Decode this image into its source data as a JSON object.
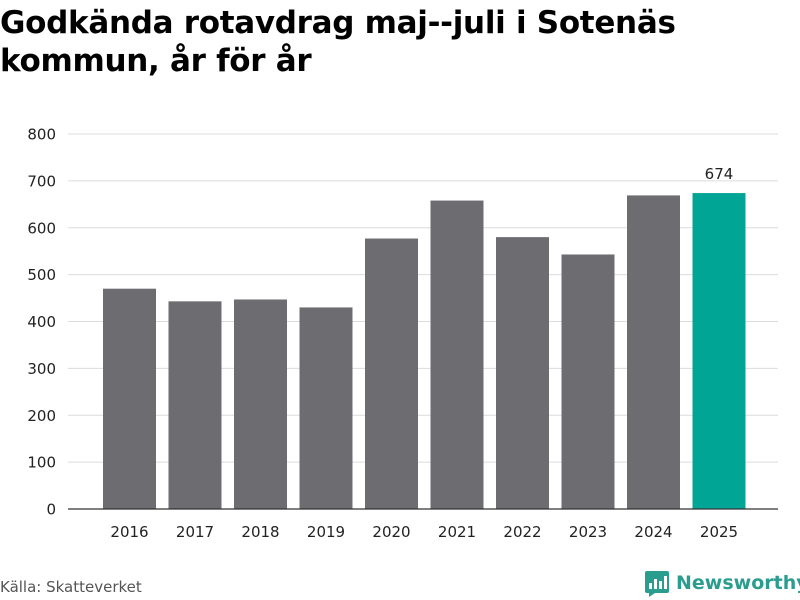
{
  "header": {
    "title": "Godkända rotavdrag maj--juli i Sotenäs kommun, år för år"
  },
  "footer": {
    "source": "Källa: Skatteverket",
    "brand": "Newsworthy",
    "brand_icon": "newsworthy-logo-icon"
  },
  "colors": {
    "bar": "#6d6d71",
    "highlight": "#00a596",
    "grid": "#dcdcdc",
    "axis": "#333333",
    "brand": "#2a9d8f"
  },
  "chart_data": {
    "type": "bar",
    "categories": [
      "2016",
      "2017",
      "2018",
      "2019",
      "2020",
      "2021",
      "2022",
      "2023",
      "2024",
      "2025"
    ],
    "values": [
      470,
      443,
      447,
      430,
      577,
      658,
      580,
      543,
      669,
      674
    ],
    "highlight_index": 9,
    "data_labels": [
      {
        "index": 9,
        "text": "674"
      }
    ],
    "yticks": [
      0,
      100,
      200,
      300,
      400,
      500,
      600,
      700,
      800
    ],
    "ylim": [
      0,
      800
    ],
    "grid": true,
    "xlabel": "",
    "ylabel": ""
  }
}
